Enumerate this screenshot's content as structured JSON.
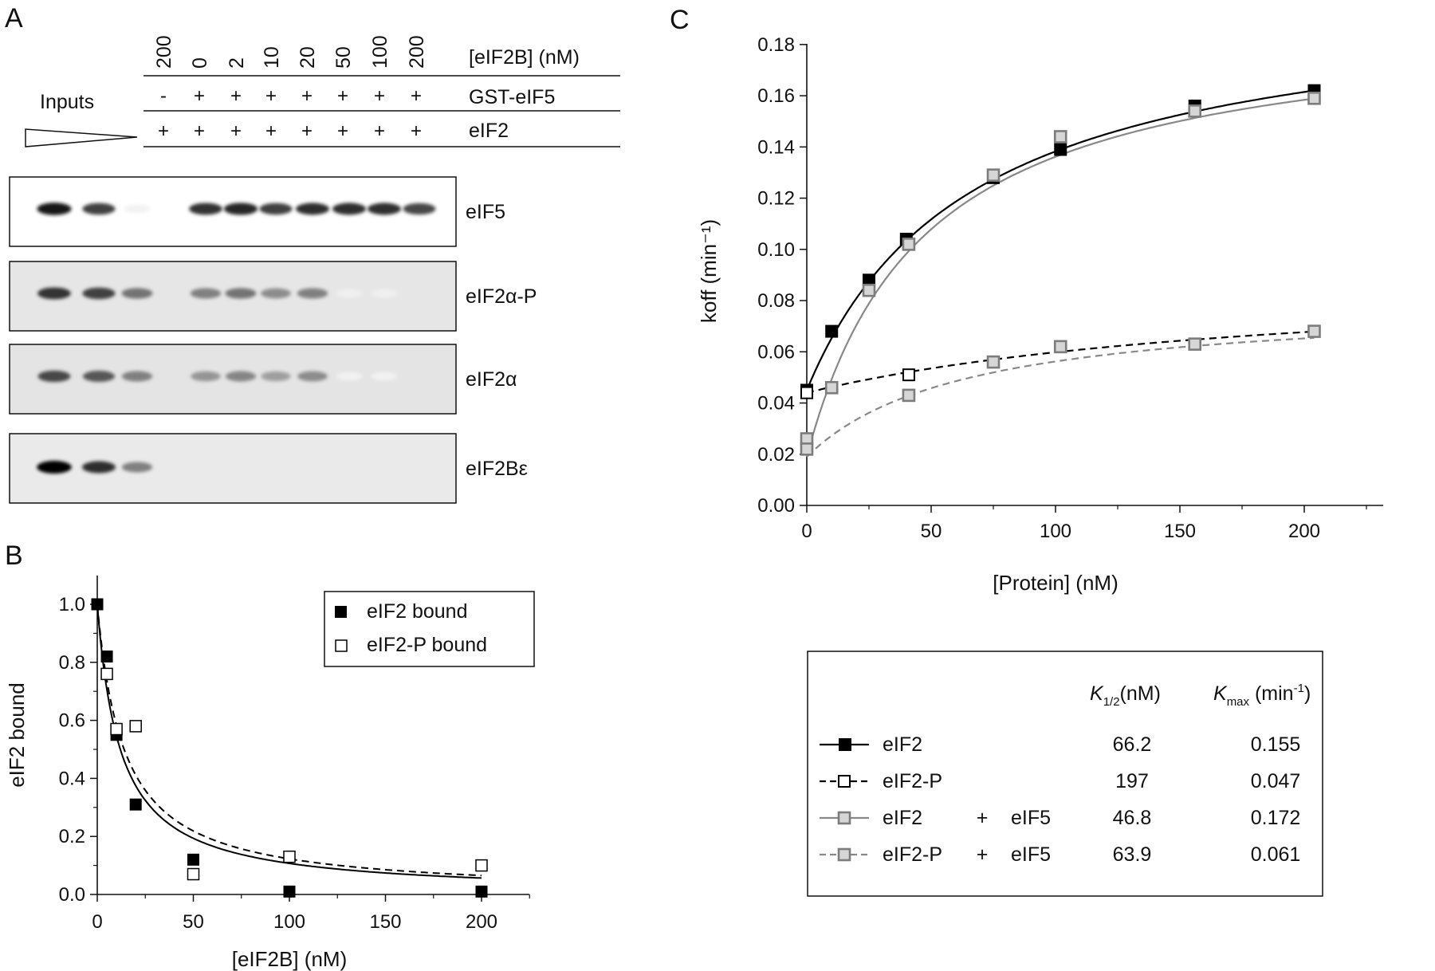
{
  "panels": {
    "a": {
      "letter": "A",
      "inputs_label": "Inputs",
      "conc_values": [
        "200",
        "0",
        "2",
        "10",
        "20",
        "50",
        "100",
        "200"
      ],
      "conc_header": "[eIF2B] (nM)",
      "gst_signs": [
        "-",
        "+",
        "+",
        "+",
        "+",
        "+",
        "+",
        "+"
      ],
      "gst_header": "GST-eIF5",
      "eif2_signs": [
        "+",
        "+",
        "+",
        "+",
        "+",
        "+",
        "+",
        "+"
      ],
      "eif2_header": "eIF2",
      "blots": [
        {
          "label": "eIF5",
          "background": "#ffffff",
          "bands": [
            0.92,
            0.75,
            0.05,
            null,
            0.8,
            0.85,
            0.75,
            0.82,
            0.82,
            0.82,
            0.72
          ]
        },
        {
          "label": "eIF2α-P",
          "background": "#e6e6e6",
          "bands": [
            0.8,
            0.75,
            0.55,
            null,
            0.5,
            0.55,
            0.45,
            0.5,
            0.06,
            0.06,
            null
          ]
        },
        {
          "label": "eIF2α",
          "background": "#e4e4e4",
          "bands": [
            0.72,
            0.66,
            0.5,
            null,
            0.42,
            0.48,
            0.38,
            0.45,
            0.05,
            0.05,
            null
          ]
        },
        {
          "label": "eIF2Bε",
          "background": "#eaeaea",
          "bands": [
            0.98,
            0.82,
            0.5,
            null,
            null,
            null,
            null,
            null,
            null,
            null,
            null
          ]
        }
      ]
    },
    "b": {
      "letter": "B"
    },
    "c": {
      "letter": "C"
    }
  },
  "chart_data": [
    {
      "type": "scatter",
      "panel": "B",
      "xlabel": "[eIF2B] (nM)",
      "ylabel": "eIF2 bound",
      "xlim": [
        0,
        225
      ],
      "ylim": [
        0,
        1.1
      ],
      "xticks": [
        0,
        50,
        100,
        150,
        200
      ],
      "yticks": [
        0.0,
        0.2,
        0.4,
        0.6,
        0.8,
        1.0
      ],
      "xtick_labels": [
        "0",
        "50",
        "100",
        "150",
        "200"
      ],
      "ytick_labels": [
        "0.0",
        "0.2",
        "0.4",
        "0.6",
        "0.8",
        "1.0"
      ],
      "legend_position": "top-right",
      "series": [
        {
          "name": "eIF2 bound",
          "marker": "filled-square",
          "color": "#000000",
          "x": [
            0,
            5,
            10,
            20,
            50,
            100,
            200
          ],
          "y": [
            1.0,
            0.82,
            0.55,
            0.31,
            0.12,
            0.01,
            0.01
          ],
          "fit": {
            "kind": "hyperbolic-decay",
            "k_half": 12,
            "linestyle": "solid"
          }
        },
        {
          "name": "eIF2-P bound",
          "marker": "open-square",
          "color": "#000000",
          "x": [
            5,
            10,
            20,
            50,
            100,
            200
          ],
          "y": [
            0.76,
            0.57,
            0.58,
            0.07,
            0.13,
            0.1
          ],
          "fit": {
            "kind": "hyperbolic-decay",
            "k_half": 14,
            "linestyle": "dashed"
          }
        }
      ]
    },
    {
      "type": "scatter",
      "panel": "C",
      "xlabel": "[Protein] (nM)",
      "ylabel": "koff (min⁻¹)",
      "xlim": [
        0,
        225
      ],
      "ylim": [
        0,
        0.18
      ],
      "xticks": [
        0,
        50,
        100,
        150,
        200
      ],
      "yticks": [
        0.0,
        0.02,
        0.04,
        0.06,
        0.08,
        0.1,
        0.12,
        0.14,
        0.16,
        0.18
      ],
      "xtick_labels": [
        "0",
        "50",
        "100",
        "150",
        "200"
      ],
      "ytick_labels": [
        "0.00",
        "0.02",
        "0.04",
        "0.06",
        "0.08",
        "0.10",
        "0.12",
        "0.14",
        "0.16",
        "0.18"
      ],
      "series": [
        {
          "name": "eIF2",
          "marker": "filled-square",
          "color": "#000000",
          "linestyle": "solid",
          "x": [
            0,
            10,
            25,
            40,
            75,
            102,
            156,
            204
          ],
          "y": [
            0.045,
            0.068,
            0.088,
            0.104,
            0.128,
            0.139,
            0.156,
            0.162
          ],
          "fit": {
            "y0": 0.045,
            "kmax": 0.155,
            "k_half": 66.2
          }
        },
        {
          "name": "eIF2-P",
          "marker": "open-square",
          "color": "#000000",
          "linestyle": "dashed",
          "x": [
            0,
            41
          ],
          "y": [
            0.044,
            0.051
          ],
          "fit": {
            "y0": 0.044,
            "kmax": 0.047,
            "k_half": 197
          }
        },
        {
          "name": "eIF2 + eIF5",
          "marker": "grey-open-square",
          "color": "#888888",
          "linestyle": "solid",
          "x": [
            0,
            10,
            25,
            41,
            75,
            102,
            156,
            204
          ],
          "y": [
            0.026,
            0.046,
            0.084,
            0.102,
            0.129,
            0.144,
            0.154,
            0.159
          ],
          "fit": {
            "y0": 0.019,
            "kmax": 0.172,
            "k_half": 46.8
          }
        },
        {
          "name": "eIF2-P + eIF5",
          "marker": "grey-open-square",
          "color": "#888888",
          "linestyle": "dashed",
          "x": [
            0,
            41,
            75,
            102,
            156,
            204
          ],
          "y": [
            0.022,
            0.043,
            0.056,
            0.062,
            0.063,
            0.068
          ],
          "fit": {
            "y0": 0.019,
            "kmax": 0.061,
            "k_half": 63.9
          }
        }
      ]
    }
  ],
  "table": {
    "header_k_half": "K",
    "header_k_half_sub": "1/2",
    "header_k_half_unit": "(nM)",
    "header_kmax": "K",
    "header_kmax_sub": "max",
    "header_kmax_unit": " (min",
    "header_kmax_exp": "-1",
    "header_kmax_close": ")",
    "rows": [
      {
        "protein": "eIF2",
        "plus": "",
        "partner": "",
        "k_half": "66.2",
        "kmax": "0.155",
        "marker": "filled",
        "color": "#000000",
        "dashed": false
      },
      {
        "protein": "eIF2-P",
        "plus": "",
        "partner": "",
        "k_half": "197",
        "kmax": "0.047",
        "marker": "open",
        "color": "#000000",
        "dashed": true
      },
      {
        "protein": "eIF2",
        "plus": "+",
        "partner": "eIF5",
        "k_half": "46.8",
        "kmax": "0.172",
        "marker": "grey",
        "color": "#888888",
        "dashed": false
      },
      {
        "protein": "eIF2-P",
        "plus": "+",
        "partner": "eIF5",
        "k_half": "63.9",
        "kmax": "0.061",
        "marker": "grey",
        "color": "#888888",
        "dashed": true
      }
    ]
  }
}
